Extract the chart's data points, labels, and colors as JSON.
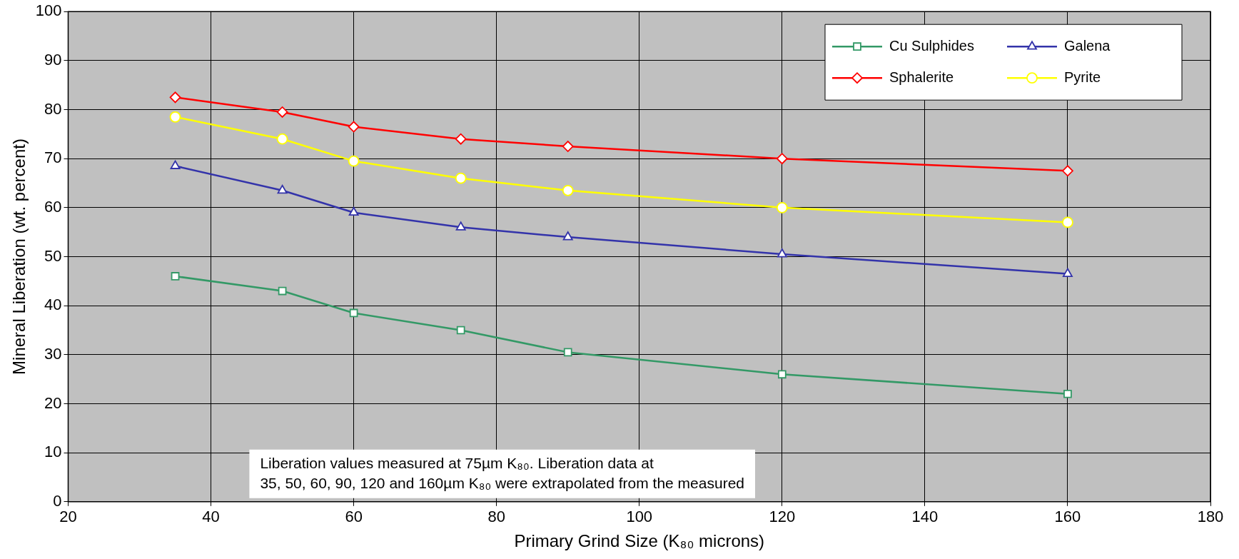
{
  "chart_data": {
    "type": "line",
    "xlabel": "Primary Grind Size (K₈₀ microns)",
    "ylabel": "Mineral Liberation (wt. percent)",
    "x": [
      35,
      50,
      60,
      75,
      90,
      120,
      160
    ],
    "xlim": [
      20,
      180
    ],
    "xticks": [
      20,
      40,
      60,
      80,
      100,
      120,
      140,
      160,
      180
    ],
    "ylim": [
      0,
      100
    ],
    "yticks": [
      0,
      10,
      20,
      30,
      40,
      50,
      60,
      70,
      80,
      90,
      100
    ],
    "grid": true,
    "legend": "top right",
    "line_style": "solid",
    "series": [
      {
        "name": "Cu Sulphides",
        "color": "#339966",
        "marker": "square",
        "values": [
          46,
          43,
          38.5,
          35,
          30.5,
          26,
          22
        ]
      },
      {
        "name": "Galena",
        "color": "#3333aa",
        "marker": "triangle",
        "values": [
          68.5,
          63.5,
          59,
          56,
          54,
          50.5,
          46.5
        ]
      },
      {
        "name": "Sphalerite",
        "color": "#ff0000",
        "marker": "diamond",
        "values": [
          82.5,
          79.5,
          76.5,
          74,
          72.5,
          70,
          67.5
        ]
      },
      {
        "name": "Pyrite",
        "color": "#ffff00",
        "marker": "circle",
        "values": [
          78.5,
          74,
          69.5,
          66,
          63.5,
          60,
          57
        ]
      }
    ],
    "annotations": [
      "Liberation values measured at 75µm K₈₀. Liberation data at\n35, 50, 60, 90, 120 and 160µm K₈₀ were extrapolated from the measured"
    ]
  }
}
